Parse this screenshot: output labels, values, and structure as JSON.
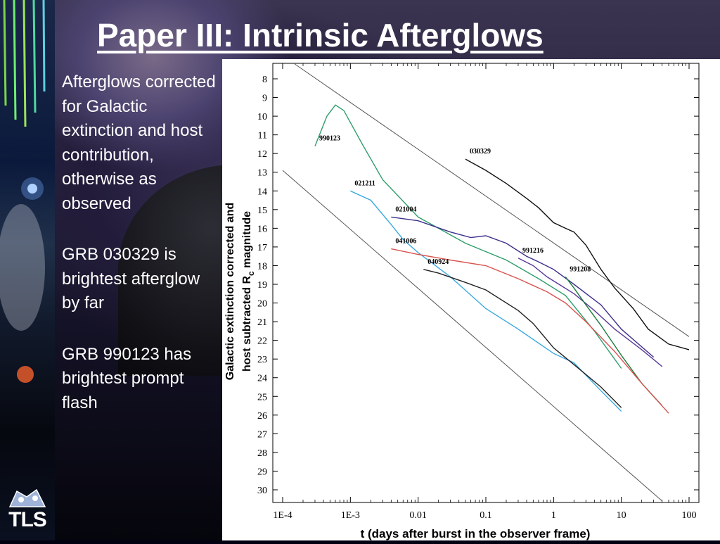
{
  "slide": {
    "title": "Paper III: Intrinsic Afterglows",
    "bullets": [
      "Afterglows corrected for Galactic extinction and host contribution, otherwise as observed",
      "GRB 030329 is brightest afterglow by far",
      "GRB 990123 has brightest prompt flash"
    ],
    "logo_text": "TLS"
  },
  "colors": {
    "title": "#ffffff",
    "text": "#ffffff",
    "figure_background": "#ffffff"
  },
  "chart_data": {
    "type": "line",
    "xlabel": "t (days after burst in the observer frame)",
    "ylabel_line1": "Galactic extinction corrected and",
    "ylabel_line2": "host subtracted R",
    "ylabel_sub": "c",
    "ylabel_suffix": " magnitude",
    "x_scale": "log",
    "xlim": [
      0.0001,
      100
    ],
    "ylim": [
      30,
      8
    ],
    "y_inverted": true,
    "x_ticks": [
      {
        "value": 0.0001,
        "label": "1E-4"
      },
      {
        "value": 0.001,
        "label": "1E-3"
      },
      {
        "value": 0.01,
        "label": "0.01"
      },
      {
        "value": 0.1,
        "label": "0.1"
      },
      {
        "value": 1,
        "label": "1"
      },
      {
        "value": 10,
        "label": "10"
      },
      {
        "value": 100,
        "label": "100"
      }
    ],
    "y_ticks": [
      8,
      9,
      10,
      11,
      12,
      13,
      14,
      15,
      16,
      17,
      18,
      19,
      20,
      21,
      22,
      23,
      24,
      25,
      26,
      27,
      28,
      29,
      30
    ],
    "envelope_lines": [
      {
        "x": [
          0.00015,
          100
        ],
        "y": [
          7.2,
          21.8
        ]
      },
      {
        "x": [
          0.0001,
          40
        ],
        "y": [
          12.9,
          30.6
        ]
      }
    ],
    "series": [
      {
        "name": "990123",
        "color": "#2e9e6a",
        "x": [
          0.0003,
          0.00045,
          0.0006,
          0.0008,
          0.0015,
          0.003,
          0.01,
          0.05,
          0.2,
          0.6,
          1.5,
          4,
          10
        ],
        "y": [
          11.6,
          10.0,
          9.4,
          9.7,
          11.5,
          13.4,
          15.4,
          16.8,
          17.7,
          18.7,
          19.6,
          21.5,
          23.5
        ]
      },
      {
        "name": "030329",
        "color": "#111111",
        "x": [
          0.05,
          0.1,
          0.2,
          0.4,
          0.6,
          1,
          1.5,
          2,
          3,
          5,
          8,
          15,
          25,
          50,
          100
        ],
        "y": [
          12.3,
          12.9,
          13.6,
          14.4,
          14.9,
          15.7,
          16.0,
          16.2,
          16.9,
          18.2,
          19.2,
          20.3,
          21.4,
          22.2,
          22.5
        ]
      },
      {
        "name": "021211",
        "color": "#3aa9e0",
        "x": [
          0.001,
          0.002,
          0.004,
          0.006,
          0.01,
          0.03,
          0.1,
          0.3,
          1,
          2,
          5,
          10
        ],
        "y": [
          14.0,
          14.5,
          15.8,
          16.6,
          17.3,
          18.6,
          20.3,
          21.4,
          22.7,
          23.2,
          24.7,
          25.8
        ]
      },
      {
        "name": "021004",
        "color": "#3b2f8c",
        "x": [
          0.004,
          0.01,
          0.03,
          0.06,
          0.1,
          0.2,
          0.4,
          0.6,
          1,
          2,
          5,
          10,
          30
        ],
        "y": [
          15.4,
          15.6,
          16.2,
          16.5,
          16.4,
          16.8,
          17.5,
          17.8,
          18.2,
          19.0,
          20.1,
          21.4,
          22.9
        ]
      },
      {
        "name": "991216",
        "color": "#5a3a9a",
        "x": [
          0.3,
          0.5,
          0.8,
          1.2,
          2,
          4,
          8,
          20,
          40
        ],
        "y": [
          17.6,
          18.0,
          18.6,
          19.0,
          19.5,
          20.4,
          21.4,
          22.5,
          23.4
        ]
      },
      {
        "name": "991208",
        "color": "#1a7a3a",
        "x": [
          1.5,
          2,
          3,
          5,
          10,
          20,
          40
        ],
        "y": [
          18.6,
          19.2,
          20.1,
          21.2,
          22.8,
          24.3,
          25.5
        ]
      },
      {
        "name": "041006",
        "color": "#d9534f",
        "x": [
          0.004,
          0.01,
          0.03,
          0.1,
          0.3,
          0.8,
          1.5,
          3,
          8,
          20,
          50
        ],
        "y": [
          17.1,
          17.4,
          17.7,
          18.0,
          18.7,
          19.4,
          20.0,
          21.0,
          22.6,
          24.3,
          25.9
        ]
      },
      {
        "name": "040924",
        "color": "#222222",
        "x": [
          0.012,
          0.02,
          0.05,
          0.1,
          0.3,
          0.5,
          1,
          2,
          5,
          10
        ],
        "y": [
          18.2,
          18.4,
          18.9,
          19.3,
          20.4,
          21.1,
          22.4,
          23.3,
          24.5,
          25.6
        ]
      }
    ]
  }
}
